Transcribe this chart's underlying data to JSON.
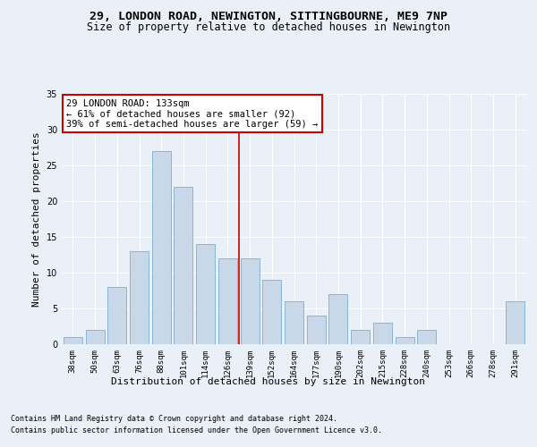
{
  "title": "29, LONDON ROAD, NEWINGTON, SITTINGBOURNE, ME9 7NP",
  "subtitle": "Size of property relative to detached houses in Newington",
  "xlabel": "Distribution of detached houses by size in Newington",
  "ylabel": "Number of detached properties",
  "categories": [
    "38sqm",
    "50sqm",
    "63sqm",
    "76sqm",
    "88sqm",
    "101sqm",
    "114sqm",
    "126sqm",
    "139sqm",
    "152sqm",
    "164sqm",
    "177sqm",
    "190sqm",
    "202sqm",
    "215sqm",
    "228sqm",
    "240sqm",
    "253sqm",
    "266sqm",
    "278sqm",
    "291sqm"
  ],
  "values": [
    1,
    2,
    8,
    13,
    27,
    22,
    14,
    12,
    12,
    9,
    6,
    4,
    7,
    2,
    3,
    1,
    2,
    0,
    0,
    0,
    6
  ],
  "bar_color": "#c8d8e8",
  "bar_edge_color": "#7bafd4",
  "reference_line_x": 7.5,
  "reference_line_color": "#cc0000",
  "annotation_text": "29 LONDON ROAD: 133sqm\n← 61% of detached houses are smaller (92)\n39% of semi-detached houses are larger (59) →",
  "annotation_box_color": "#ffffff",
  "annotation_box_edge": "#cc0000",
  "ylim": [
    0,
    35
  ],
  "yticks": [
    0,
    5,
    10,
    15,
    20,
    25,
    30,
    35
  ],
  "bg_color": "#eaf0f8",
  "plot_bg_color": "#eaf0f8",
  "footer1": "Contains HM Land Registry data © Crown copyright and database right 2024.",
  "footer2": "Contains public sector information licensed under the Open Government Licence v3.0.",
  "title_fontsize": 9.5,
  "subtitle_fontsize": 8.5,
  "tick_fontsize": 6.5,
  "label_fontsize": 8,
  "annotation_fontsize": 7.5,
  "footer_fontsize": 6.0
}
